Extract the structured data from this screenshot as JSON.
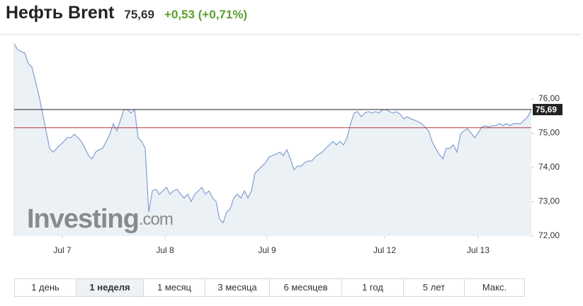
{
  "header": {
    "title": "Нефть Brent",
    "price": "75,69",
    "change": "+0,53 (+0,71%)"
  },
  "chart_data": {
    "type": "area",
    "x": [
      0,
      1,
      2,
      3,
      4,
      5,
      6,
      7,
      8,
      9,
      10,
      11,
      12,
      13,
      14,
      15,
      16,
      17,
      18,
      19,
      20,
      21,
      22,
      23,
      24,
      25,
      26,
      27,
      28,
      29,
      30,
      31,
      32,
      33,
      34,
      35,
      36,
      37,
      38,
      39,
      40,
      41,
      42,
      43,
      44,
      45,
      46,
      47,
      48,
      49,
      50,
      51,
      52,
      53,
      54,
      55,
      56,
      57,
      58,
      59,
      60,
      61,
      62,
      63,
      64,
      65,
      66,
      67,
      68,
      69,
      70,
      71,
      72,
      73,
      74,
      75,
      76,
      77,
      78,
      79,
      80,
      81,
      82,
      83,
      84,
      85,
      86,
      87,
      88,
      89,
      90,
      91,
      92,
      93,
      94,
      95,
      96,
      97,
      98,
      99,
      100,
      101,
      102,
      103,
      104,
      105,
      106,
      107,
      108,
      109,
      110,
      111,
      112,
      113,
      114,
      115,
      116,
      117,
      118,
      119,
      120,
      121,
      122,
      123,
      124,
      125,
      126,
      127,
      128,
      129,
      130,
      131,
      132,
      133,
      134,
      135,
      136,
      137,
      138,
      139,
      140,
      141,
      142,
      143,
      144,
      145,
      146
    ],
    "values": [
      77.61,
      77.44,
      77.38,
      77.34,
      77.03,
      76.93,
      76.52,
      76.1,
      75.59,
      75.07,
      74.56,
      74.45,
      74.56,
      74.66,
      74.76,
      74.87,
      74.87,
      74.97,
      74.87,
      74.76,
      74.56,
      74.35,
      74.25,
      74.45,
      74.52,
      74.56,
      74.76,
      74.97,
      75.28,
      75.07,
      75.38,
      75.69,
      75.69,
      75.59,
      75.69,
      74.87,
      74.76,
      74.56,
      72.7,
      73.32,
      73.36,
      73.22,
      73.32,
      73.42,
      73.22,
      73.32,
      73.36,
      73.22,
      73.11,
      73.22,
      73.01,
      73.22,
      73.32,
      73.42,
      73.22,
      73.32,
      73.11,
      73.01,
      72.49,
      72.39,
      72.7,
      72.8,
      73.11,
      73.22,
      73.11,
      73.32,
      73.11,
      73.32,
      73.84,
      73.94,
      74.04,
      74.14,
      74.31,
      74.35,
      74.39,
      74.45,
      74.35,
      74.52,
      74.25,
      73.94,
      74.04,
      74.04,
      74.14,
      74.19,
      74.19,
      74.31,
      74.39,
      74.45,
      74.56,
      74.66,
      74.76,
      74.66,
      74.76,
      74.66,
      74.87,
      75.28,
      75.59,
      75.63,
      75.48,
      75.59,
      75.63,
      75.59,
      75.63,
      75.59,
      75.69,
      75.69,
      75.63,
      75.59,
      75.63,
      75.55,
      75.42,
      75.48,
      75.42,
      75.38,
      75.34,
      75.28,
      75.18,
      75.07,
      74.76,
      74.56,
      74.39,
      74.25,
      74.56,
      74.56,
      74.66,
      74.45,
      74.97,
      75.07,
      75.13,
      75.01,
      74.87,
      75.01,
      75.18,
      75.22,
      75.18,
      75.22,
      75.22,
      75.28,
      75.22,
      75.28,
      75.22,
      75.28,
      75.28,
      75.28,
      75.38,
      75.48,
      75.69
    ],
    "line_color": "#7f9fd0",
    "fill_color": "#e9eef4",
    "xlim": [
      0,
      146
    ],
    "xticks": [
      {
        "value": 13.6,
        "label": "Jul 7"
      },
      {
        "value": 42.6,
        "label": "Jul 8"
      },
      {
        "value": 71.4,
        "label": "Jul 9"
      },
      {
        "value": 104.6,
        "label": "Jul 12"
      },
      {
        "value": 131,
        "label": "Jul 13"
      }
    ],
    "ylim": [
      72,
      77.65
    ],
    "yticks": [
      {
        "value": 72,
        "label": "72,00"
      },
      {
        "value": 73,
        "label": "73,00"
      },
      {
        "value": 74,
        "label": "74,00"
      },
      {
        "value": 75,
        "label": "75,00"
      },
      {
        "value": 76,
        "label": "76,00"
      }
    ],
    "price_line": {
      "value": 75.69,
      "label": "75,69",
      "color": "#222222"
    },
    "prev_close_line": {
      "value": 75.16,
      "color": "#b03a3a"
    },
    "watermark": {
      "main": "Investing",
      "suffix": ".com"
    }
  },
  "ranges": {
    "items": [
      "1 день",
      "1 неделя",
      "1 месяц",
      "3 месяца",
      "6 месяцев",
      "1 год",
      "5 лет",
      "Макс."
    ],
    "active": 1
  }
}
